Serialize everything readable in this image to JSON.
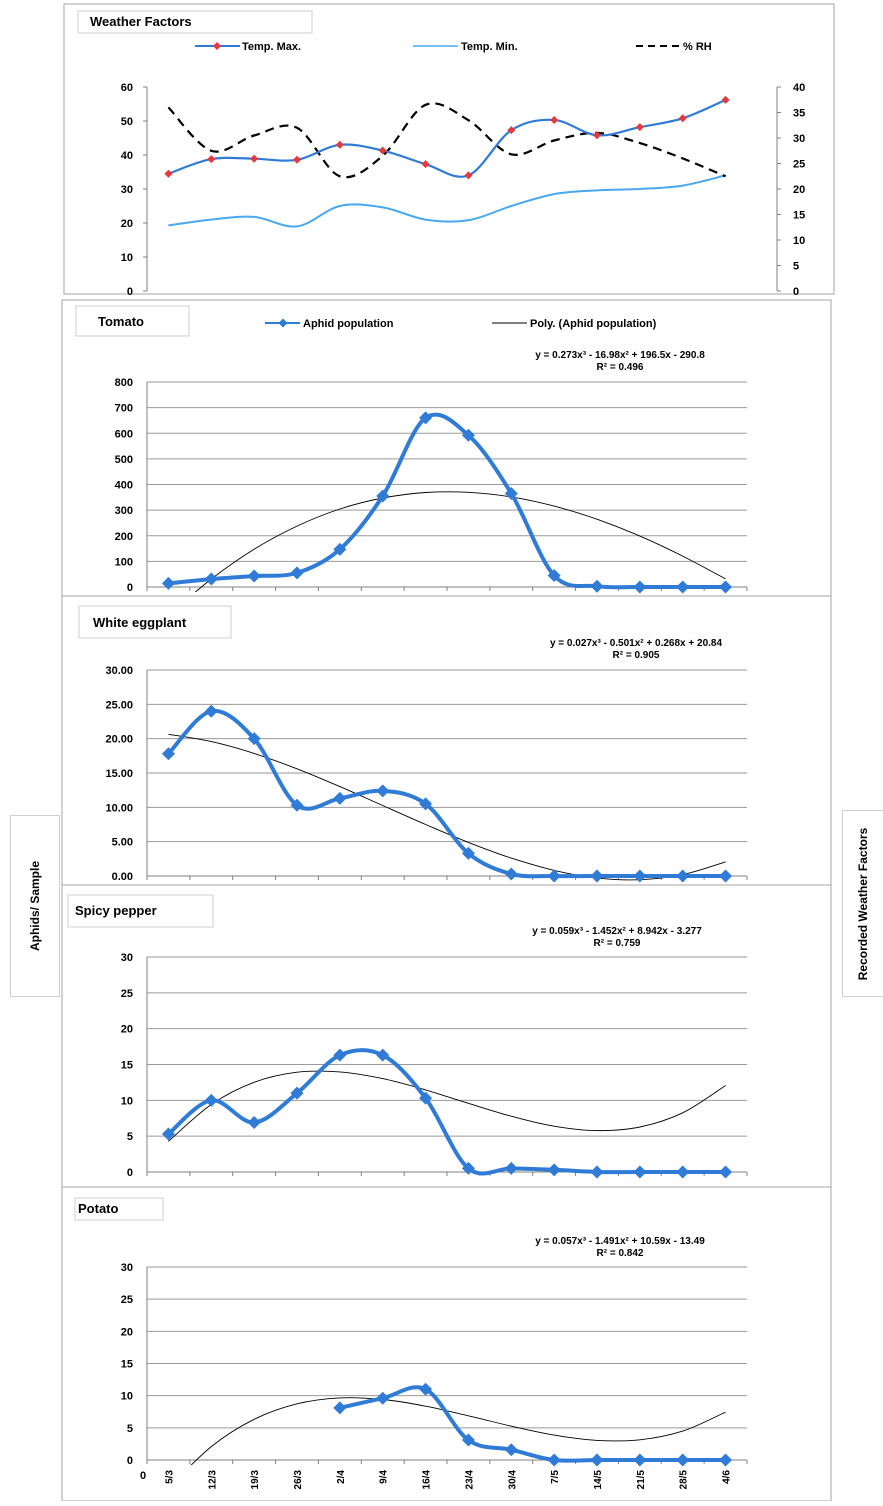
{
  "y_axis_title_left": "Aphids/ Sample",
  "y_axis_title_right": "Recorded Weather Factors",
  "x_tick_labels": [
    "5/3",
    "12/3",
    "19/3",
    "26/3",
    "2/4",
    "9/4",
    "16/4",
    "23/4",
    "30/4",
    "7/5",
    "14/5",
    "21/5",
    "28/5",
    "4/6"
  ],
  "x_origin_label": "0",
  "chart_data": [
    {
      "type": "line",
      "title": "Weather Factors",
      "ylim": [
        0,
        60
      ],
      "y2lim": [
        0,
        40
      ],
      "yticks": [
        "0",
        "10",
        "20",
        "30",
        "40",
        "50",
        "60"
      ],
      "y2ticks": [
        "0",
        "5",
        "10",
        "15",
        "20",
        "25",
        "30",
        "35",
        "40"
      ],
      "series": [
        {
          "name": "Temp. Max.",
          "axis": "left",
          "color": "#2f7bd6",
          "marker_color": "#e8373d",
          "style": "solid",
          "values": [
            34.5,
            38.8,
            38.9,
            38.6,
            43.0,
            41.3,
            37.3,
            34.0,
            47.3,
            50.3,
            45.8,
            48.2,
            50.8,
            56.2
          ]
        },
        {
          "name": "Temp. Min.",
          "axis": "left",
          "color": "#4aa8ee",
          "style": "solid",
          "values": [
            19.3,
            21.0,
            21.8,
            19.0,
            25.0,
            24.6,
            21.0,
            20.8,
            25.0,
            28.5,
            29.6,
            30.0,
            31.0,
            34.0
          ]
        },
        {
          "name": "% RH",
          "axis": "right",
          "color": "#000000",
          "style": "dashed",
          "values": [
            36.0,
            27.5,
            30.5,
            32.0,
            22.5,
            26.5,
            36.5,
            33.5,
            26.8,
            29.5,
            31.0,
            29.0,
            26.0,
            22.5
          ]
        }
      ]
    },
    {
      "type": "line",
      "title": "Tomato",
      "legend": [
        "Aphid population",
        "Poly. (Aphid population)"
      ],
      "equation": "y = 0.273x³ - 16.98x² + 196.5x - 290.8",
      "r2": "R² = 0.496",
      "ylim": [
        0,
        800
      ],
      "yticks": [
        "0",
        "100",
        "200",
        "300",
        "400",
        "500",
        "600",
        "700",
        "800"
      ],
      "values": [
        14,
        31,
        43,
        55,
        147,
        355,
        660,
        592,
        365,
        45,
        3,
        0,
        0,
        0
      ],
      "trend": [
        -111.0,
        31.4,
        147.4,
        237.8,
        304.3,
        347.3,
        368.6,
        369.4,
        351.5,
        315.9,
        264.4,
        198.7,
        120.5,
        31.5
      ],
      "color": "#2f7bd6"
    },
    {
      "type": "line",
      "title": "White eggplant",
      "equation": "y = 0.027x³ - 0.501x² + 0.268x + 20.84",
      "r2": "R² = 0.905",
      "ylim": [
        0,
        30
      ],
      "yticks": [
        "0.00",
        "5.00",
        "10.00",
        "15.00",
        "20.00",
        "25.00",
        "30.00"
      ],
      "values": [
        17.8,
        24.0,
        20.0,
        10.3,
        11.3,
        12.4,
        10.5,
        3.3,
        0.3,
        0.0,
        0.0,
        0.0,
        0.0,
        0.0
      ],
      "trend": [
        20.63,
        19.58,
        17.85,
        15.61,
        13.02,
        10.26,
        7.5,
        4.89,
        2.61,
        0.82,
        -0.3,
        -0.54,
        0.2,
        2.06
      ],
      "color": "#2f7bd6"
    },
    {
      "type": "line",
      "title": "Spicy pepper",
      "equation": "y = 0.059x³ - 1.452x² + 8.942x - 3.277",
      "r2": "R² = 0.759",
      "ylim": [
        0,
        30
      ],
      "yticks": [
        "0",
        "5",
        "10",
        "15",
        "20",
        "25",
        "30"
      ],
      "values": [
        5.3,
        10.0,
        6.9,
        11.0,
        16.3,
        16.3,
        10.3,
        0.5,
        0.5,
        0.3,
        0.0,
        0.0,
        0.0,
        0.0
      ],
      "trend": [
        4.27,
        9.42,
        12.52,
        13.92,
        13.97,
        13.03,
        11.45,
        9.58,
        7.78,
        6.39,
        5.77,
        6.28,
        8.26,
        12.07
      ],
      "color": "#2f7bd6"
    },
    {
      "type": "line",
      "title": "Potato",
      "equation": "y = 0.057x³ - 1.491x² + 10.59x - 13.49",
      "r2": "R² = 0.842",
      "ylim": [
        0,
        30
      ],
      "yticks": [
        "0",
        "5",
        "10",
        "15",
        "20",
        "25",
        "30"
      ],
      "values": [
        null,
        null,
        null,
        null,
        8.1,
        9.6,
        11.0,
        3.1,
        1.6,
        0.0,
        0.0,
        0.0,
        0.0,
        0.0
      ],
      "trend": [
        -4.33,
        2.09,
        6.33,
        8.73,
        9.65,
        9.41,
        8.37,
        6.87,
        5.26,
        3.87,
        3.05,
        3.14,
        4.49,
        7.44
      ],
      "color": "#2f7bd6"
    }
  ]
}
